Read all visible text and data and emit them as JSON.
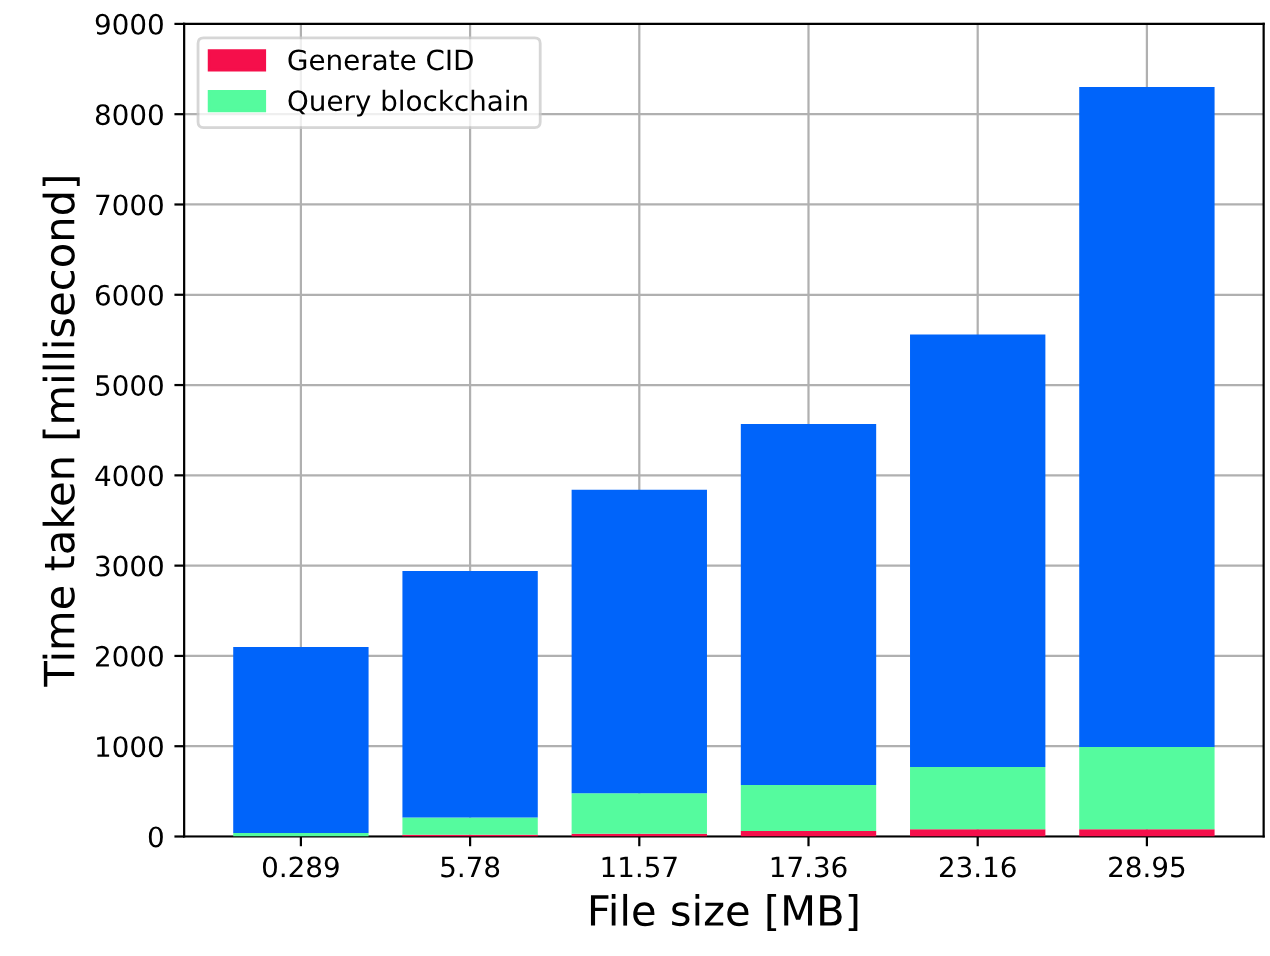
{
  "chart_data": {
    "type": "bar",
    "stacked": true,
    "xlabel": "File size [MB]",
    "ylabel": "Time taken [millisecond]",
    "categories": [
      "0.289",
      "5.78",
      "11.57",
      "17.36",
      "23.16",
      "28.95"
    ],
    "series": [
      {
        "name": "Generate CID",
        "color": "#f50f4b",
        "values": [
          null,
          20,
          30,
          60,
          80,
          80
        ]
      },
      {
        "name": "Query blockchain",
        "color": "#55fb9e",
        "values": [
          40,
          190,
          450,
          510,
          690,
          910
        ]
      },
      {
        "color": "#0064fa",
        "values": [
          2060,
          2730,
          3360,
          4000,
          4790,
          7310
        ]
      }
    ],
    "ylim": [
      0,
      9000
    ],
    "yticks": [
      0,
      1000,
      2000,
      3000,
      4000,
      5000,
      6000,
      7000,
      8000,
      9000
    ],
    "grid": true,
    "legend": "top left"
  }
}
